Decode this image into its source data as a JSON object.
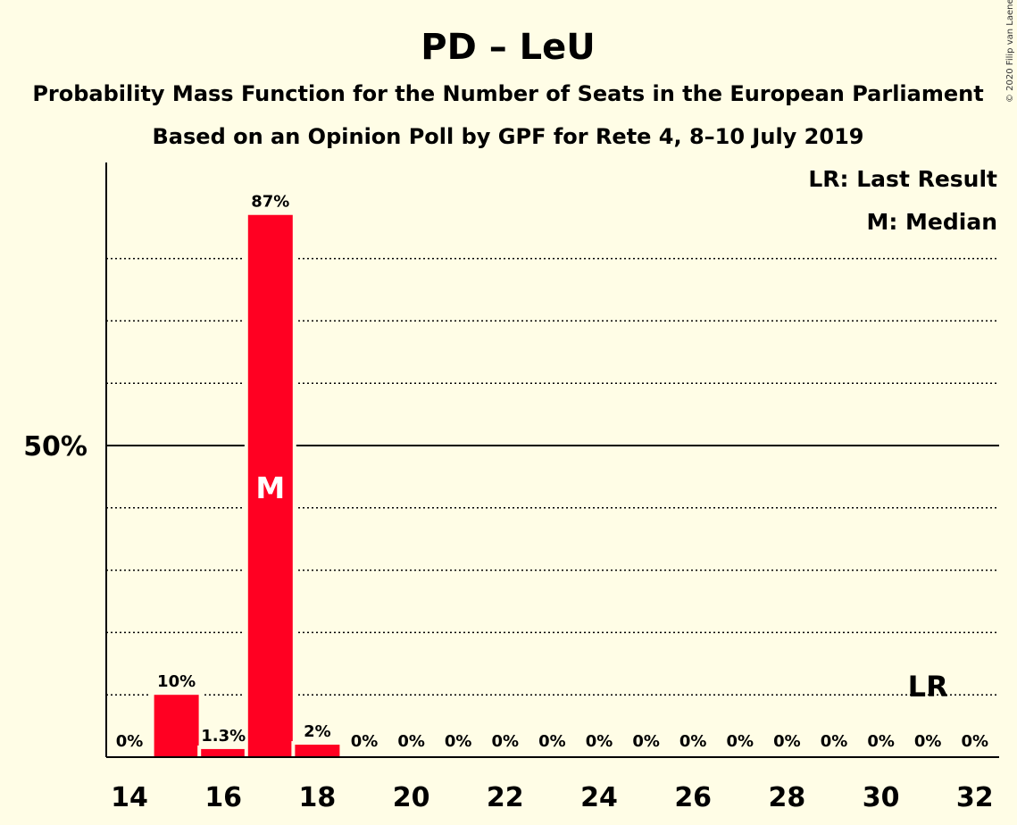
{
  "copyright": "© 2020 Filip van Laenen",
  "chart_data": {
    "type": "bar",
    "title": "PD – LeU",
    "subtitle": "Probability Mass Function for the Number of Seats in the European Parliament",
    "subtitle2": "Based on an Opinion Poll by GPF for Rete 4, 8–10 July 2019",
    "categories": [
      14,
      15,
      16,
      17,
      18,
      19,
      20,
      21,
      22,
      23,
      24,
      25,
      26,
      27,
      28,
      29,
      30,
      31,
      32
    ],
    "values": [
      0,
      10,
      1.3,
      87,
      2,
      0,
      0,
      0,
      0,
      0,
      0,
      0,
      0,
      0,
      0,
      0,
      0,
      0,
      0
    ],
    "value_labels": [
      "0%",
      "10%",
      "1.3%",
      "87%",
      "2%",
      "0%",
      "0%",
      "0%",
      "0%",
      "0%",
      "0%",
      "0%",
      "0%",
      "0%",
      "0%",
      "0%",
      "0%",
      "0%",
      "0%"
    ],
    "x_tick_labels": [
      "14",
      "16",
      "18",
      "20",
      "22",
      "24",
      "26",
      "28",
      "30",
      "32"
    ],
    "x_ticks": [
      14,
      16,
      18,
      20,
      22,
      24,
      26,
      28,
      30,
      32
    ],
    "y_tick_label": "50%",
    "y_tick_value": 50,
    "gridlines": [
      10,
      20,
      30,
      40,
      60,
      70,
      80
    ],
    "ylim": [
      0,
      95
    ],
    "median": 17,
    "median_label": "M",
    "last_result": 31,
    "last_result_label": "LR",
    "legend": [
      "LR: Last Result",
      "M: Median"
    ],
    "legend_position": "top-right",
    "bar_color": "#FF0022",
    "background_color": "#FFFDE6"
  }
}
